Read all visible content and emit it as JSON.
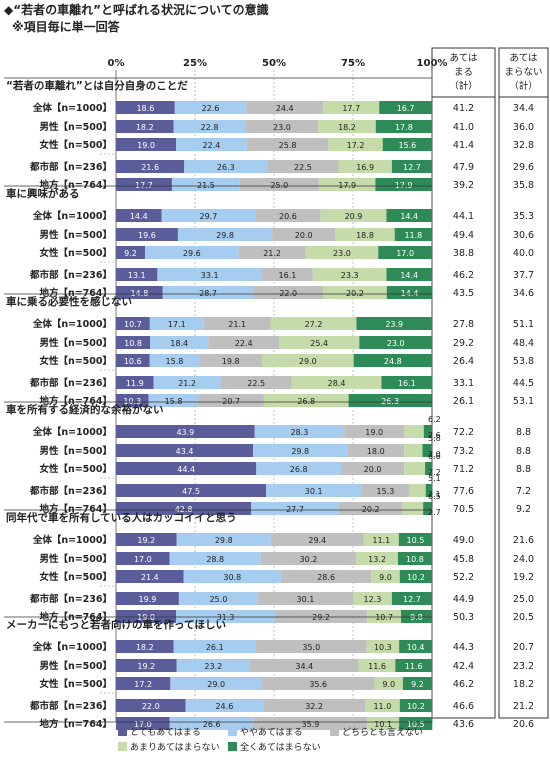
{
  "title": "◆“若者の車離れ”と呼ばれる状況についての意識",
  "subtitle": "※項目毎に単一回答",
  "header_cols": [
    [
      "あては",
      "まる",
      "（計）"
    ],
    [
      "あては",
      "まらない",
      "（計）"
    ]
  ],
  "legend_labels": [
    "とてもあてはまる",
    "ややあてはまる",
    "どちらとも言えない",
    "あまりあてはまらない",
    "全くあてはまらない"
  ],
  "colors": [
    "#5b5d9a",
    "#a6cdef",
    "#bfbfbf",
    "#c6dbaa",
    "#2e8b57"
  ],
  "chart_data": {
    "type": "bar",
    "stacked": "100%",
    "orientation": "horizontal",
    "xlim": [
      0,
      100
    ],
    "x_ticks": [
      "0%",
      "25%",
      "50%",
      "75%",
      "100%"
    ],
    "series_names": [
      "とてもあてはまる",
      "ややあてはまる",
      "どちらとも言えない",
      "あまりあてはまらない",
      "全くあてはまらない"
    ],
    "groups": [
      {
        "title": "“若者の車離れ”とは自分自身のことだ",
        "rows": [
          {
            "label": "全体【n=1000】",
            "values": [
              18.6,
              22.6,
              24.4,
              17.7,
              16.7
            ],
            "agree": "41.2",
            "disagree": "34.4"
          },
          {
            "label": "男性【n=500】",
            "values": [
              18.2,
              22.8,
              23.0,
              18.2,
              17.8
            ],
            "agree": "41.0",
            "disagree": "36.0"
          },
          {
            "label": "女性【n=500】",
            "values": [
              19.0,
              22.4,
              25.8,
              17.2,
              15.6
            ],
            "agree": "41.4",
            "disagree": "32.8"
          },
          {
            "label": "都市部【n=236】",
            "values": [
              21.6,
              26.3,
              22.5,
              16.9,
              12.7
            ],
            "agree": "47.9",
            "disagree": "29.6"
          },
          {
            "label": "地方【n=764】",
            "values": [
              17.7,
              21.5,
              25.0,
              17.9,
              17.9
            ],
            "agree": "39.2",
            "disagree": "35.8"
          }
        ]
      },
      {
        "title": "車に興味がある",
        "rows": [
          {
            "label": "全体【n=1000】",
            "values": [
              14.4,
              29.7,
              20.6,
              20.9,
              14.4
            ],
            "agree": "44.1",
            "disagree": "35.3"
          },
          {
            "label": "男性【n=500】",
            "values": [
              19.6,
              29.8,
              20.0,
              18.8,
              11.8
            ],
            "agree": "49.4",
            "disagree": "30.6"
          },
          {
            "label": "女性【n=500】",
            "values": [
              9.2,
              29.6,
              21.2,
              23.0,
              17.0
            ],
            "agree": "38.8",
            "disagree": "40.0"
          },
          {
            "label": "都市部【n=236】",
            "values": [
              13.1,
              33.1,
              16.1,
              23.3,
              14.4
            ],
            "agree": "46.2",
            "disagree": "37.7"
          },
          {
            "label": "地方【n=764】",
            "values": [
              14.8,
              28.7,
              22.0,
              20.2,
              14.4
            ],
            "agree": "43.5",
            "disagree": "34.6"
          }
        ]
      },
      {
        "title": "車に乗る必要性を感じない",
        "rows": [
          {
            "label": "全体【n=1000】",
            "values": [
              10.7,
              17.1,
              21.1,
              27.2,
              23.9
            ],
            "agree": "27.8",
            "disagree": "51.1"
          },
          {
            "label": "男性【n=500】",
            "values": [
              10.8,
              18.4,
              22.4,
              25.4,
              23.0
            ],
            "agree": "29.2",
            "disagree": "48.4"
          },
          {
            "label": "女性【n=500】",
            "values": [
              10.6,
              15.8,
              19.8,
              29.0,
              24.8
            ],
            "agree": "26.4",
            "disagree": "53.8"
          },
          {
            "label": "都市部【n=236】",
            "values": [
              11.9,
              21.2,
              22.5,
              28.4,
              16.1
            ],
            "agree": "33.1",
            "disagree": "44.5"
          },
          {
            "label": "地方【n=764】",
            "values": [
              10.3,
              15.8,
              20.7,
              26.8,
              26.3
            ],
            "agree": "26.1",
            "disagree": "53.1"
          }
        ]
      },
      {
        "title": "車を所有する経済的な余裕がない",
        "rows": [
          {
            "label": "全体【n=1000】",
            "values": [
              43.9,
              28.3,
              19.0,
              6.2,
              2.6
            ],
            "agree": "72.2",
            "disagree": "8.8"
          },
          {
            "label": "男性【n=500】",
            "values": [
              43.4,
              29.8,
              18.0,
              5.8,
              3.0
            ],
            "agree": "73.2",
            "disagree": "8.8"
          },
          {
            "label": "女性【n=500】",
            "values": [
              44.4,
              26.8,
              20.0,
              6.6,
              2.2
            ],
            "agree": "71.2",
            "disagree": "8.8"
          },
          {
            "label": "都市部【n=236】",
            "values": [
              47.5,
              30.1,
              15.3,
              5.1,
              2.1
            ],
            "agree": "77.6",
            "disagree": "7.2"
          },
          {
            "label": "地方【n=764】",
            "values": [
              42.8,
              27.7,
              20.2,
              6.5,
              2.7
            ],
            "agree": "70.5",
            "disagree": "9.2"
          }
        ]
      },
      {
        "title": "同年代で車を所有している人はカッコイイと思う",
        "rows": [
          {
            "label": "全体【n=1000】",
            "values": [
              19.2,
              29.8,
              29.4,
              11.1,
              10.5
            ],
            "agree": "49.0",
            "disagree": "21.6"
          },
          {
            "label": "男性【n=500】",
            "values": [
              17.0,
              28.8,
              30.2,
              13.2,
              10.8
            ],
            "agree": "45.8",
            "disagree": "24.0"
          },
          {
            "label": "女性【n=500】",
            "values": [
              21.4,
              30.8,
              28.6,
              9.0,
              10.2
            ],
            "agree": "52.2",
            "disagree": "19.2"
          },
          {
            "label": "都市部【n=236】",
            "values": [
              19.9,
              25.0,
              30.1,
              12.3,
              12.7
            ],
            "agree": "44.9",
            "disagree": "25.0"
          },
          {
            "label": "地方【n=764】",
            "values": [
              19.0,
              31.3,
              29.2,
              10.7,
              9.8
            ],
            "agree": "50.3",
            "disagree": "20.5"
          }
        ]
      },
      {
        "title": "メーカーにもっと若者向けの車を作ってほしい",
        "rows": [
          {
            "label": "全体【n=1000】",
            "values": [
              18.2,
              26.1,
              35.0,
              10.3,
              10.4
            ],
            "agree": "44.3",
            "disagree": "20.7"
          },
          {
            "label": "男性【n=500】",
            "values": [
              19.2,
              23.2,
              34.4,
              11.6,
              11.6
            ],
            "agree": "42.4",
            "disagree": "23.2"
          },
          {
            "label": "女性【n=500】",
            "values": [
              17.2,
              29.0,
              35.6,
              9.0,
              9.2
            ],
            "agree": "46.2",
            "disagree": "18.2"
          },
          {
            "label": "都市部【n=236】",
            "values": [
              22.0,
              24.6,
              32.2,
              11.0,
              10.2
            ],
            "agree": "46.6",
            "disagree": "21.2"
          },
          {
            "label": "地方【n=764】",
            "values": [
              17.0,
              26.6,
              35.9,
              10.1,
              10.5
            ],
            "agree": "43.6",
            "disagree": "20.6"
          }
        ]
      }
    ]
  }
}
